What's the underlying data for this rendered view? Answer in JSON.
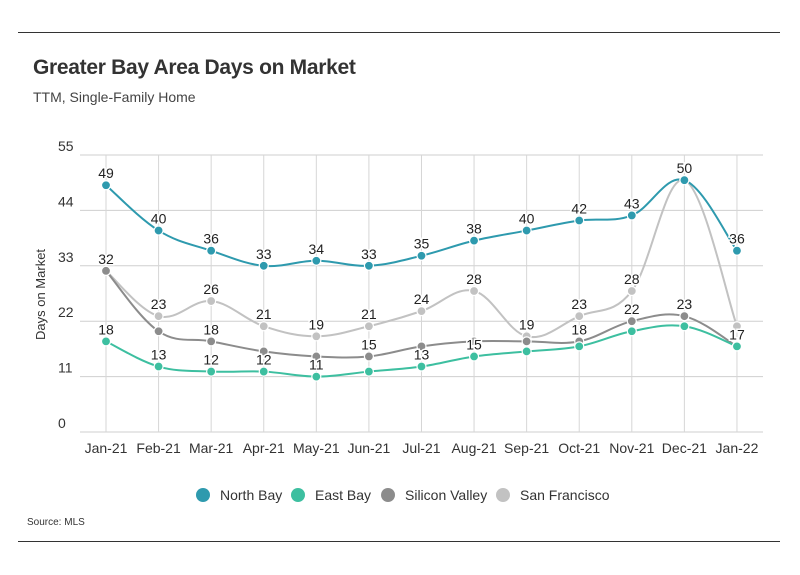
{
  "header": {
    "title": "Greater Bay Area Days on Market",
    "subtitle": "TTM, Single-Family Home"
  },
  "footer": {
    "source": "Source:  MLS"
  },
  "chart_data": {
    "type": "line",
    "title": "Greater Bay Area Days on Market",
    "subtitle": "TTM, Single-Family Home",
    "xlabel": "",
    "ylabel": "Days on Market",
    "ylim": [
      0,
      55
    ],
    "yticks": [
      0,
      11,
      22,
      33,
      44,
      55
    ],
    "grid": true,
    "legend_position": "bottom",
    "categories": [
      "Jan-21",
      "Feb-21",
      "Mar-21",
      "Apr-21",
      "May-21",
      "Jun-21",
      "Jul-21",
      "Aug-21",
      "Sep-21",
      "Oct-21",
      "Nov-21",
      "Dec-21",
      "Jan-22"
    ],
    "series": [
      {
        "name": "North Bay",
        "color": "#2e9aae",
        "values": [
          49,
          40,
          36,
          33,
          34,
          33,
          35,
          38,
          40,
          42,
          43,
          50,
          36
        ],
        "labels": [
          "49",
          "40",
          "36",
          "33",
          "34",
          "33",
          "35",
          "38",
          "40",
          "42",
          "43",
          "50",
          "36"
        ]
      },
      {
        "name": "East Bay",
        "color": "#3dbfa0",
        "values": [
          18,
          13,
          12,
          12,
          11,
          12,
          13,
          15,
          16,
          17,
          20,
          21,
          17
        ],
        "labels": [
          "18",
          "13",
          "12",
          "12",
          "11",
          "",
          "13",
          "15",
          "",
          "",
          "",
          "",
          ""
        ]
      },
      {
        "name": "Silicon Valley",
        "color": "#8c8c8c",
        "values": [
          32,
          20,
          18,
          16,
          15,
          15,
          17,
          18,
          18,
          18,
          22,
          23,
          17
        ],
        "labels": [
          "32",
          "",
          "18",
          "",
          "",
          "15",
          "",
          "",
          "",
          "18",
          "22",
          "23",
          "17"
        ]
      },
      {
        "name": "San Francisco",
        "color": "#c2c2c2",
        "values": [
          32,
          23,
          26,
          21,
          19,
          21,
          24,
          28,
          19,
          23,
          28,
          50,
          21
        ],
        "labels": [
          "",
          "23",
          "26",
          "21",
          "19",
          "21",
          "24",
          "28",
          "19",
          "23",
          "28",
          "",
          ""
        ]
      }
    ]
  }
}
